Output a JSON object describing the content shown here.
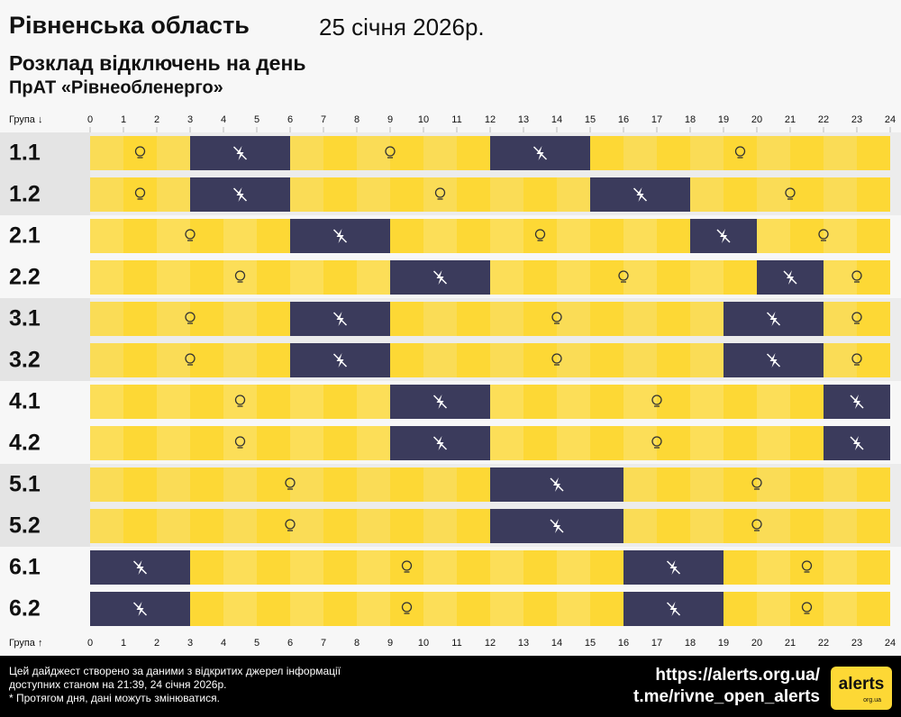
{
  "chart_data": {
    "type": "schedule",
    "title": "Рівненська область",
    "date": "25 січня 2026р.",
    "subtitle": "Розклад відключень на день",
    "company": "ПрАТ «Рівнеобленерго»",
    "axis_label_top": "Група ↓",
    "axis_label_bottom": "Група ↑",
    "xlim": [
      0,
      24
    ],
    "xticks": [
      0,
      1,
      2,
      3,
      4,
      5,
      6,
      7,
      8,
      9,
      10,
      11,
      12,
      13,
      14,
      15,
      16,
      17,
      18,
      19,
      20,
      21,
      22,
      23,
      24
    ],
    "on_color": "#fdd835",
    "off_color": "#3b3b5c",
    "groups": [
      {
        "name": "1.1",
        "outages": [
          [
            3,
            6
          ],
          [
            12,
            15
          ]
        ]
      },
      {
        "name": "1.2",
        "outages": [
          [
            3,
            6
          ],
          [
            15,
            18
          ]
        ]
      },
      {
        "name": "2.1",
        "outages": [
          [
            6,
            9
          ],
          [
            18,
            20
          ]
        ]
      },
      {
        "name": "2.2",
        "outages": [
          [
            9,
            12
          ],
          [
            20,
            22
          ]
        ]
      },
      {
        "name": "3.1",
        "outages": [
          [
            6,
            9
          ],
          [
            19,
            22
          ]
        ]
      },
      {
        "name": "3.2",
        "outages": [
          [
            6,
            9
          ],
          [
            19,
            22
          ]
        ]
      },
      {
        "name": "4.1",
        "outages": [
          [
            9,
            12
          ],
          [
            22,
            24
          ]
        ]
      },
      {
        "name": "4.2",
        "outages": [
          [
            9,
            12
          ],
          [
            22,
            24
          ]
        ]
      },
      {
        "name": "5.1",
        "outages": [
          [
            12,
            16
          ]
        ]
      },
      {
        "name": "5.2",
        "outages": [
          [
            12,
            16
          ]
        ]
      },
      {
        "name": "6.1",
        "outages": [
          [
            0,
            3
          ],
          [
            16,
            19
          ]
        ]
      },
      {
        "name": "6.2",
        "outages": [
          [
            0,
            3
          ],
          [
            16,
            19
          ]
        ]
      }
    ],
    "footer_lines": [
      "Цей дайджест створено за даними з відкритих джерел інформації",
      "доступних станом на 21:39, 24 січня 2026р.",
      "* Протягом дня, дані можуть змінюватися."
    ],
    "links": [
      "https://alerts.org.ua/",
      "t.me/rivne_open_alerts"
    ],
    "logo": "alerts",
    "logo_sub": "org.ua"
  }
}
